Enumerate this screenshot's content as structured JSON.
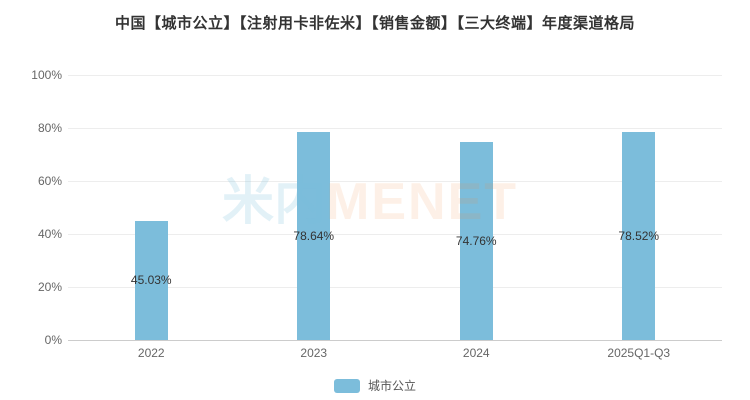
{
  "title": "中国【城市公立】【注射用卡非佐米】【销售金额】【三大终端】年度渠道格局",
  "colors": {
    "bar": "#7CBDDB",
    "title_text": "#333333",
    "axis_text": "#666666",
    "value_label_text": "#333333",
    "grid_line": "#ededed",
    "axis_line": "#cccccc",
    "watermark_blue": "rgba(125,189,219,0.22)",
    "watermark_orange": "rgba(242,140,70,0.13)",
    "background": "#ffffff"
  },
  "watermark": {
    "cn": "米内",
    "en": "MENET"
  },
  "legend": {
    "label": "城市公立"
  },
  "y_axis": {
    "ticks": [
      "100%",
      "80%",
      "60%",
      "40%",
      "20%",
      "0%"
    ]
  },
  "chart_data": {
    "type": "bar",
    "title": "中国【城市公立】【注射用卡非佐米】【销售金额】【三大终端】年度渠道格局",
    "categories": [
      "2022",
      "2023",
      "2024",
      "2025Q1-Q3"
    ],
    "series": [
      {
        "name": "城市公立",
        "values": [
          45.03,
          78.64,
          74.76,
          78.52
        ],
        "labels": [
          "45.03%",
          "78.64%",
          "74.76%",
          "78.52%"
        ]
      }
    ],
    "xlabel": "",
    "ylabel": "",
    "ylim": [
      0,
      100
    ],
    "y_tick_interval": 20,
    "grid": true,
    "legend_position": "bottom",
    "value_label_position": "inside-middle"
  }
}
